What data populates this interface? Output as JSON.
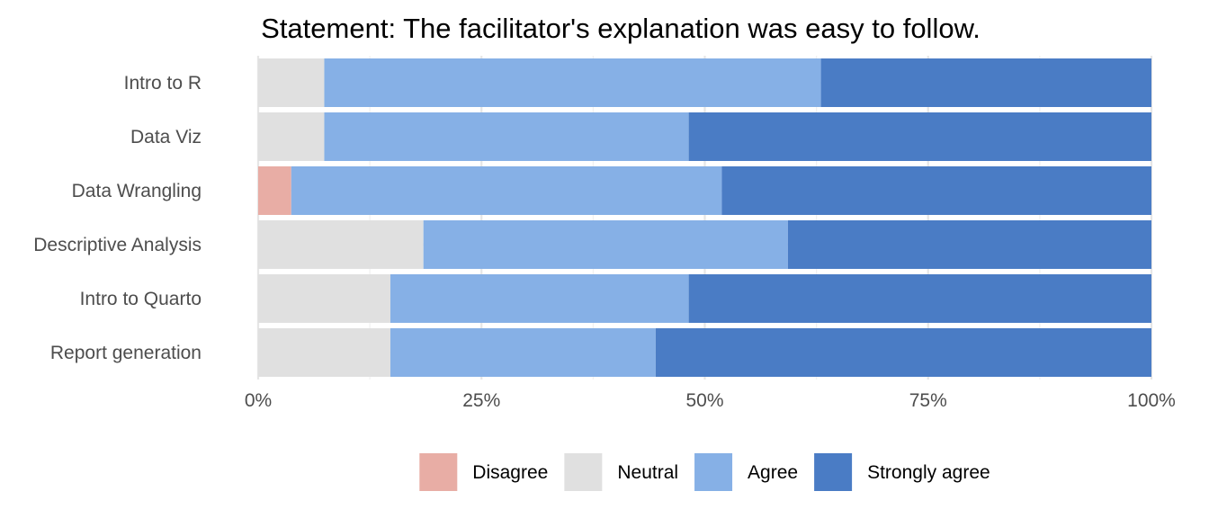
{
  "chart_data": {
    "type": "bar",
    "orientation": "horizontal",
    "stacked": true,
    "title": "Statement: The facilitator's explanation was easy to follow.",
    "categories": [
      "Intro to R",
      "Data Viz",
      "Data Wrangling",
      "Descriptive Analysis",
      "Intro to Quarto",
      "Report generation"
    ],
    "series": [
      {
        "name": "Disagree",
        "color": "#e8ada5",
        "values": [
          0,
          0,
          3.7,
          0,
          0,
          0
        ]
      },
      {
        "name": "Neutral",
        "color": "#e0e0e0",
        "values": [
          7.4,
          7.4,
          0,
          18.5,
          14.8,
          14.8
        ]
      },
      {
        "name": "Agree",
        "color": "#86b0e6",
        "values": [
          55.6,
          40.8,
          48.2,
          40.8,
          33.4,
          29.7
        ]
      },
      {
        "name": "Strongly agree",
        "color": "#4a7cc5",
        "values": [
          37.0,
          51.8,
          48.1,
          40.7,
          51.8,
          55.5
        ]
      }
    ],
    "xlim": [
      0,
      100
    ],
    "xticks": [
      0,
      25,
      50,
      75,
      100
    ],
    "xtick_labels": [
      "0%",
      "25%",
      "50%",
      "75%",
      "100%"
    ],
    "xlabel": "",
    "ylabel": "",
    "grid": true,
    "legend_position": "bottom"
  }
}
